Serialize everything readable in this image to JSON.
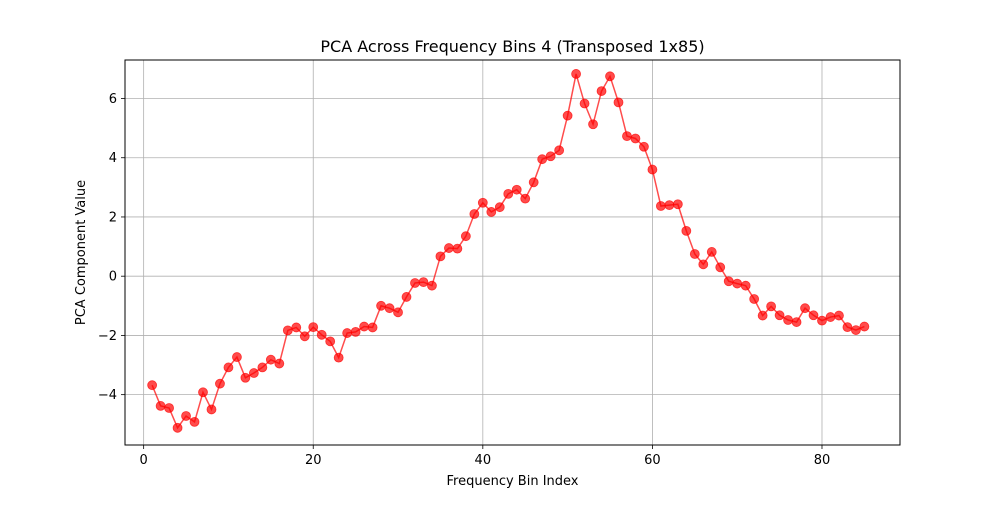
{
  "chart_data": {
    "type": "line",
    "title": "PCA Across Frequency Bins 4 (Transposed 1x85)",
    "xlabel": "Frequency Bin Index",
    "ylabel": "PCA Component Value",
    "xlim": [
      -2.2,
      89.2
    ],
    "ylim": [
      -5.7,
      7.3
    ],
    "xticks": [
      0,
      20,
      40,
      60,
      80
    ],
    "yticks": [
      -4,
      -2,
      0,
      2,
      4,
      6
    ],
    "xtick_labels": [
      "0",
      "20",
      "40",
      "60",
      "80"
    ],
    "ytick_labels": [
      "−4",
      "−2",
      "0",
      "2",
      "4",
      "6"
    ],
    "grid": true,
    "legend": "none",
    "series": [
      {
        "color": "#ff0000",
        "alpha": 0.7,
        "marker": "circle",
        "x": [
          1,
          2,
          3,
          4,
          5,
          6,
          7,
          8,
          9,
          10,
          11,
          12,
          13,
          14,
          15,
          16,
          17,
          18,
          19,
          20,
          21,
          22,
          23,
          24,
          25,
          26,
          27,
          28,
          29,
          30,
          31,
          32,
          33,
          34,
          35,
          36,
          37,
          38,
          39,
          40,
          41,
          42,
          43,
          44,
          45,
          46,
          47,
          48,
          49,
          50,
          51,
          52,
          53,
          54,
          55,
          56,
          57,
          58,
          59,
          60,
          61,
          62,
          63,
          64,
          65,
          66,
          67,
          68,
          69,
          70,
          71,
          72,
          73,
          74,
          75,
          76,
          77,
          78,
          79,
          80,
          81,
          82,
          83,
          84,
          85
        ],
        "values": [
          -3.68,
          -4.38,
          -4.45,
          -5.12,
          -4.72,
          -4.92,
          -3.92,
          -4.5,
          -3.63,
          -3.08,
          -2.73,
          -3.43,
          -3.27,
          -3.08,
          -2.82,
          -2.95,
          -1.83,
          -1.73,
          -2.03,
          -1.72,
          -1.98,
          -2.2,
          -2.75,
          -1.92,
          -1.88,
          -1.7,
          -1.73,
          -1.0,
          -1.08,
          -1.22,
          -0.7,
          -0.23,
          -0.2,
          -0.32,
          0.67,
          0.95,
          0.93,
          1.35,
          2.1,
          2.48,
          2.17,
          2.33,
          2.78,
          2.92,
          2.62,
          3.17,
          3.95,
          4.05,
          4.25,
          5.42,
          6.83,
          5.83,
          5.13,
          6.25,
          6.75,
          5.87,
          4.73,
          4.65,
          4.37,
          3.6,
          2.37,
          2.4,
          2.43,
          1.53,
          0.75,
          0.4,
          0.82,
          0.3,
          -0.17,
          -0.25,
          -0.32,
          -0.77,
          -1.33,
          -1.02,
          -1.32,
          -1.48,
          -1.55,
          -1.08,
          -1.32,
          -1.5,
          -1.38,
          -1.33,
          -1.72,
          -1.82,
          -1.7
        ]
      }
    ]
  }
}
